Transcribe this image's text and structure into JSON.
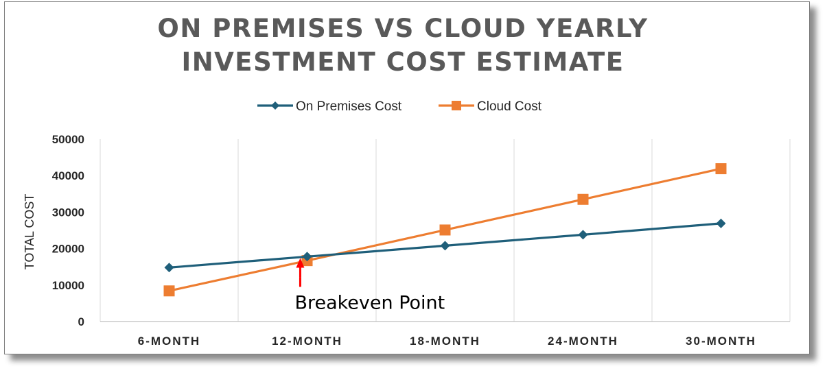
{
  "chart_data": {
    "type": "line",
    "title_lines": [
      "ON PREMISES VS CLOUD YEARLY",
      "INVESTMENT COST ESTIMATE"
    ],
    "ylabel": "TOTAL COST",
    "xlabel": "",
    "categories": [
      "6-MONTH",
      "12-MONTH",
      "18-MONTH",
      "24-MONTH",
      "30-MONTH"
    ],
    "ylim": [
      0,
      50000
    ],
    "yticks": [
      0,
      10000,
      20000,
      30000,
      40000,
      50000
    ],
    "grid": "vertical",
    "legend_position": "top-center",
    "series": [
      {
        "name": "On Premises Cost",
        "color": "#1f5f7a",
        "marker": "diamond",
        "values": [
          14800,
          17800,
          20800,
          23800,
          26900
        ]
      },
      {
        "name": "Cloud Cost",
        "color": "#ed7d31",
        "marker": "square",
        "values": [
          8400,
          16700,
          25100,
          33500,
          41900
        ]
      }
    ],
    "annotation": {
      "text": "Breakeven Point",
      "arrow_color": "#ff0000",
      "x_category_position": 1.45,
      "y_value": 18150
    }
  }
}
